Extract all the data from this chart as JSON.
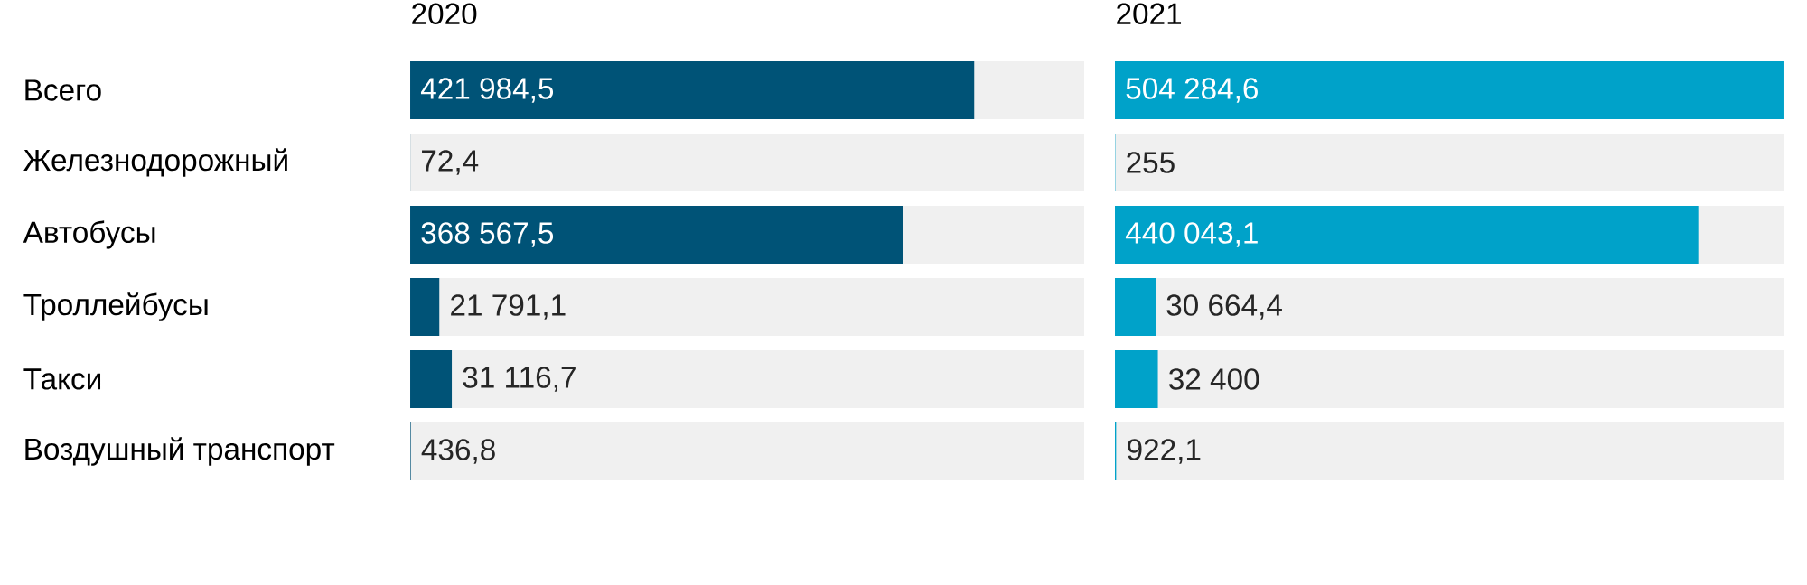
{
  "chart_data": [
    {
      "type": "bar",
      "orientation": "horizontal",
      "title": "2020",
      "categories": [
        "Всего",
        "Железнодорожный",
        "Автобусы",
        "Троллейбусы",
        "Такси",
        "Воздушный транспорт"
      ],
      "values": [
        421984.5,
        72.4,
        368567.5,
        21791.1,
        31116.7,
        436.8
      ],
      "value_labels": [
        "421 984,5",
        "72,4",
        "368 567,5",
        "21 791,1",
        "31 116,7",
        "436,8"
      ],
      "color": "#005377",
      "xlim": [
        0,
        504284.6
      ],
      "tick_labels": "y"
    },
    {
      "type": "bar",
      "orientation": "horizontal",
      "title": "2021",
      "categories": [
        null,
        null,
        null,
        null,
        null,
        null
      ],
      "values": [
        504284.6,
        255,
        440043.1,
        30664.4,
        32400,
        922.1
      ],
      "value_labels": [
        "504 284,6",
        "255",
        "440 043,1",
        "30 664,4",
        "32 400",
        "922,1"
      ],
      "color": "#00a2c9",
      "xlim": [
        0,
        504284.6
      ],
      "tick_labels": false
    }
  ]
}
